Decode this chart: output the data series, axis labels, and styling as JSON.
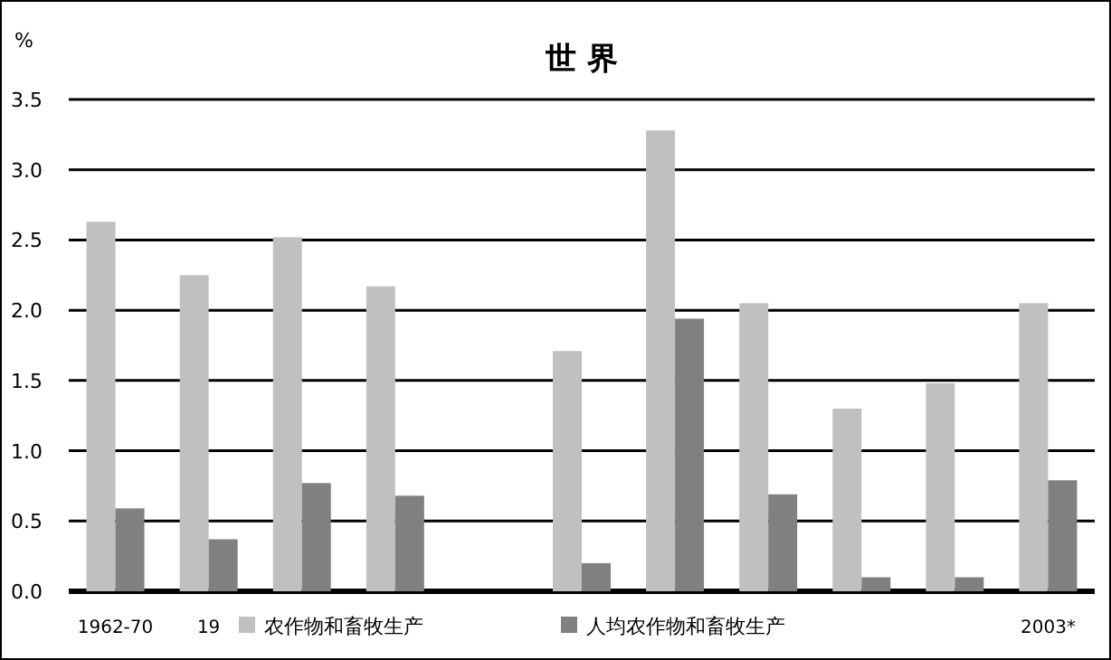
{
  "chart_data": {
    "type": "bar",
    "title": "世 界",
    "ylabel": "%",
    "categories": [
      "1962-70",
      "19",
      null,
      null,
      null,
      null,
      null,
      null,
      null,
      null,
      "2003*"
    ],
    "series": [
      {
        "name": "农作物和畜牧生产",
        "color": "#c0c0c0",
        "values": [
          2.63,
          2.25,
          2.52,
          2.17,
          null,
          1.71,
          3.28,
          2.05,
          1.3,
          1.48,
          2.05
        ]
      },
      {
        "name": "人均农作物和畜牧生产",
        "color": "#808080",
        "values": [
          0.59,
          0.37,
          0.77,
          0.68,
          null,
          0.2,
          1.94,
          0.69,
          0.1,
          0.1,
          0.79
        ]
      }
    ],
    "ylim": [
      0,
      3.5
    ],
    "yticks": [
      {
        "value": 0,
        "label": "0.0"
      },
      {
        "value": 0.5,
        "label": "0.5"
      },
      {
        "value": 1,
        "label": "1.0"
      },
      {
        "value": 1.5,
        "label": "1.5"
      },
      {
        "value": 2,
        "label": "2.0"
      },
      {
        "value": 2.5,
        "label": "2.5"
      },
      {
        "value": 3,
        "label": "3.0"
      },
      {
        "value": 3.5,
        "label": "3.5"
      }
    ],
    "grid": "y",
    "legend": "bottom"
  }
}
